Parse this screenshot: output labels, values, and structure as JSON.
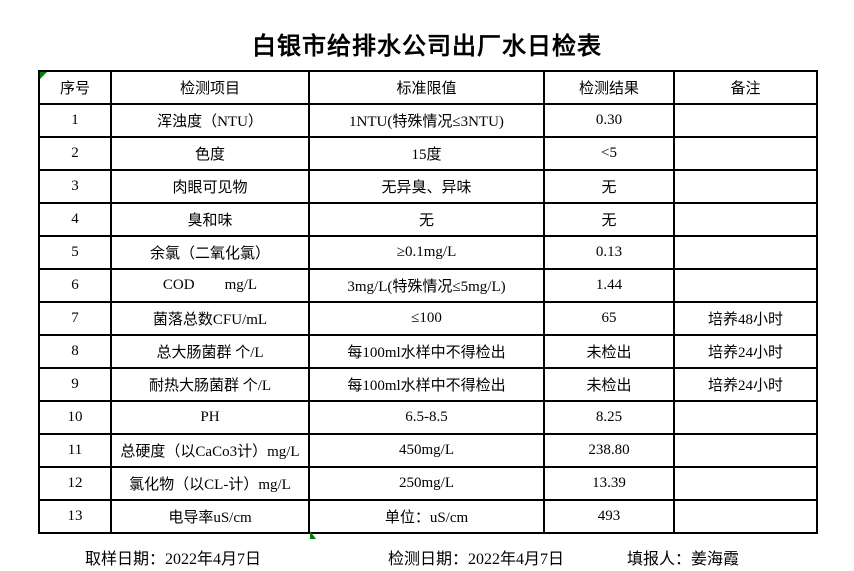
{
  "title": "白银市给排水公司出厂水日检表",
  "table": {
    "headers": [
      "序号",
      "检测项目",
      "标准限值",
      "检测结果",
      "备注"
    ],
    "rows": [
      {
        "no": "1",
        "item": "浑浊度（NTU）",
        "limit": "1NTU(特殊情况≤3NTU)",
        "result": "0.30",
        "remark": ""
      },
      {
        "no": "2",
        "item": "色度",
        "limit": "15度",
        "result": "<5",
        "remark": ""
      },
      {
        "no": "3",
        "item": "肉眼可见物",
        "limit": "无异臭、异味",
        "result": "无",
        "remark": ""
      },
      {
        "no": "4",
        "item": "臭和味",
        "limit": "无",
        "result": "无",
        "remark": ""
      },
      {
        "no": "5",
        "item": "余氯（二氧化氯）",
        "limit": "≥0.1mg/L",
        "result": "0.13",
        "remark": ""
      },
      {
        "no": "6",
        "item": "COD        mg/L",
        "limit": "3mg/L(特殊情况≤5mg/L)",
        "result": "1.44",
        "remark": ""
      },
      {
        "no": "7",
        "item": "菌落总数CFU/mL",
        "limit": "≤100",
        "result": "65",
        "remark": "培养48小时"
      },
      {
        "no": "8",
        "item": "总大肠菌群 个/L",
        "limit": "每100ml水样中不得检出",
        "result": "未检出",
        "remark": "培养24小时"
      },
      {
        "no": "9",
        "item": "耐热大肠菌群 个/L",
        "limit": "每100ml水样中不得检出",
        "result": "未检出",
        "remark": "培养24小时"
      },
      {
        "no": "10",
        "item": "PH",
        "limit": "6.5-8.5",
        "result": "8.25",
        "remark": ""
      },
      {
        "no": "11",
        "item": "总硬度（以CaCo3计）mg/L",
        "limit": "450mg/L",
        "result": "238.80",
        "remark": ""
      },
      {
        "no": "12",
        "item": "氯化物（以CL-计）mg/L",
        "limit": "250mg/L",
        "result": "13.39",
        "remark": ""
      },
      {
        "no": "13",
        "item": "电导率uS/cm",
        "limit": "单位：uS/cm",
        "result": "493",
        "remark": ""
      }
    ]
  },
  "footer": {
    "sampling_date": "取样日期：2022年4月7日",
    "testing_date": "检测日期：2022年4月7日",
    "reporter": "填报人：姜海霞"
  },
  "icons": {
    "corner_marker": "green-corner-triangle",
    "bottom_marker": "green-bottom-triangle"
  },
  "colors": {
    "marker_green": "#008000",
    "border": "#000000",
    "text": "#000000",
    "background": "#FFFFFF"
  }
}
